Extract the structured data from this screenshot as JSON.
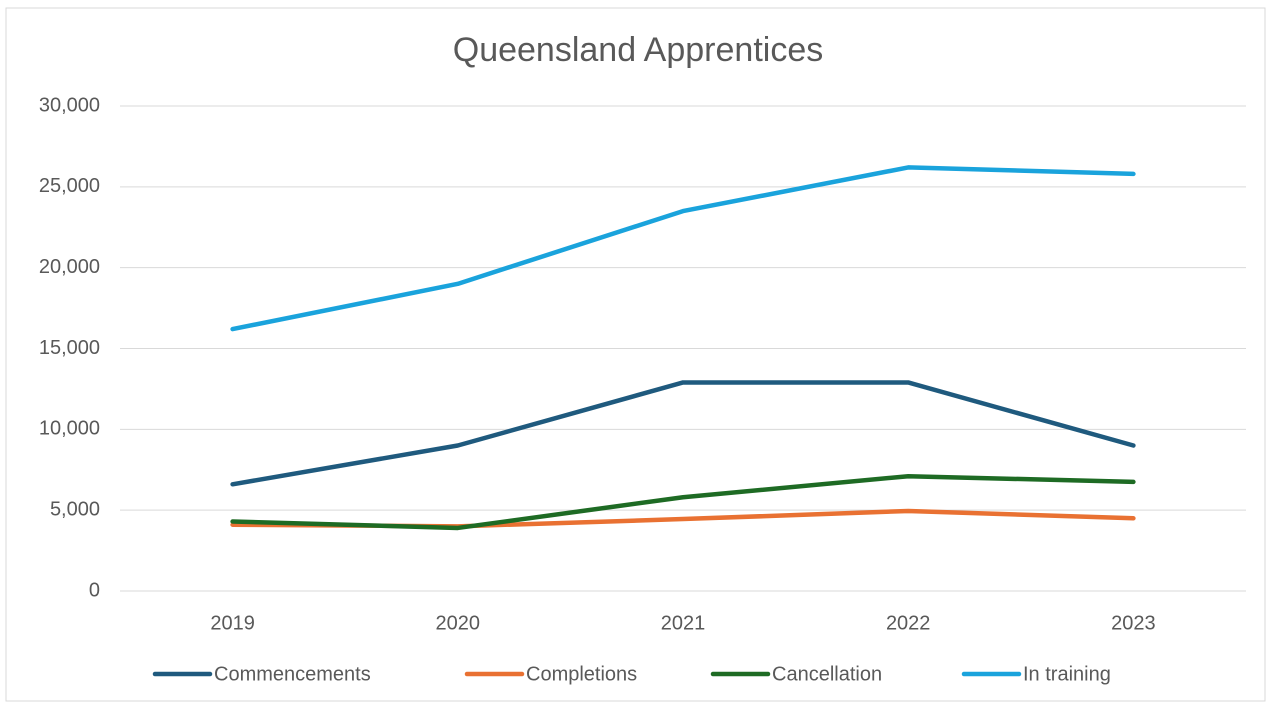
{
  "chart_data": {
    "type": "line",
    "title": "Queensland Apprentices",
    "categories": [
      "2019",
      "2020",
      "2021",
      "2022",
      "2023"
    ],
    "series": [
      {
        "name": "Commencements",
        "color": "#1f5a7e",
        "values": [
          6600,
          9000,
          12900,
          12900,
          9000
        ]
      },
      {
        "name": "Completions",
        "color": "#e97132",
        "values": [
          4100,
          4000,
          4450,
          4950,
          4500
        ]
      },
      {
        "name": "Cancellation",
        "color": "#1e6b24",
        "values": [
          4300,
          3900,
          5800,
          7100,
          6750
        ]
      },
      {
        "name": "In training",
        "color": "#1aa3dc",
        "values": [
          16200,
          19000,
          23500,
          26200,
          25800
        ]
      }
    ],
    "ylim": [
      0,
      30000
    ],
    "yticks": [
      0,
      {
        "value": 5000,
        "label": "5,000"
      },
      {
        "value": 10000,
        "label": "10,000"
      },
      {
        "value": 15000,
        "label": "15,000"
      },
      {
        "value": 20000,
        "label": "20,000"
      },
      {
        "value": 25000,
        "label": "25,000"
      },
      {
        "value": 30000,
        "label": "30,000"
      }
    ],
    "grid": true,
    "legend": "bottom"
  }
}
